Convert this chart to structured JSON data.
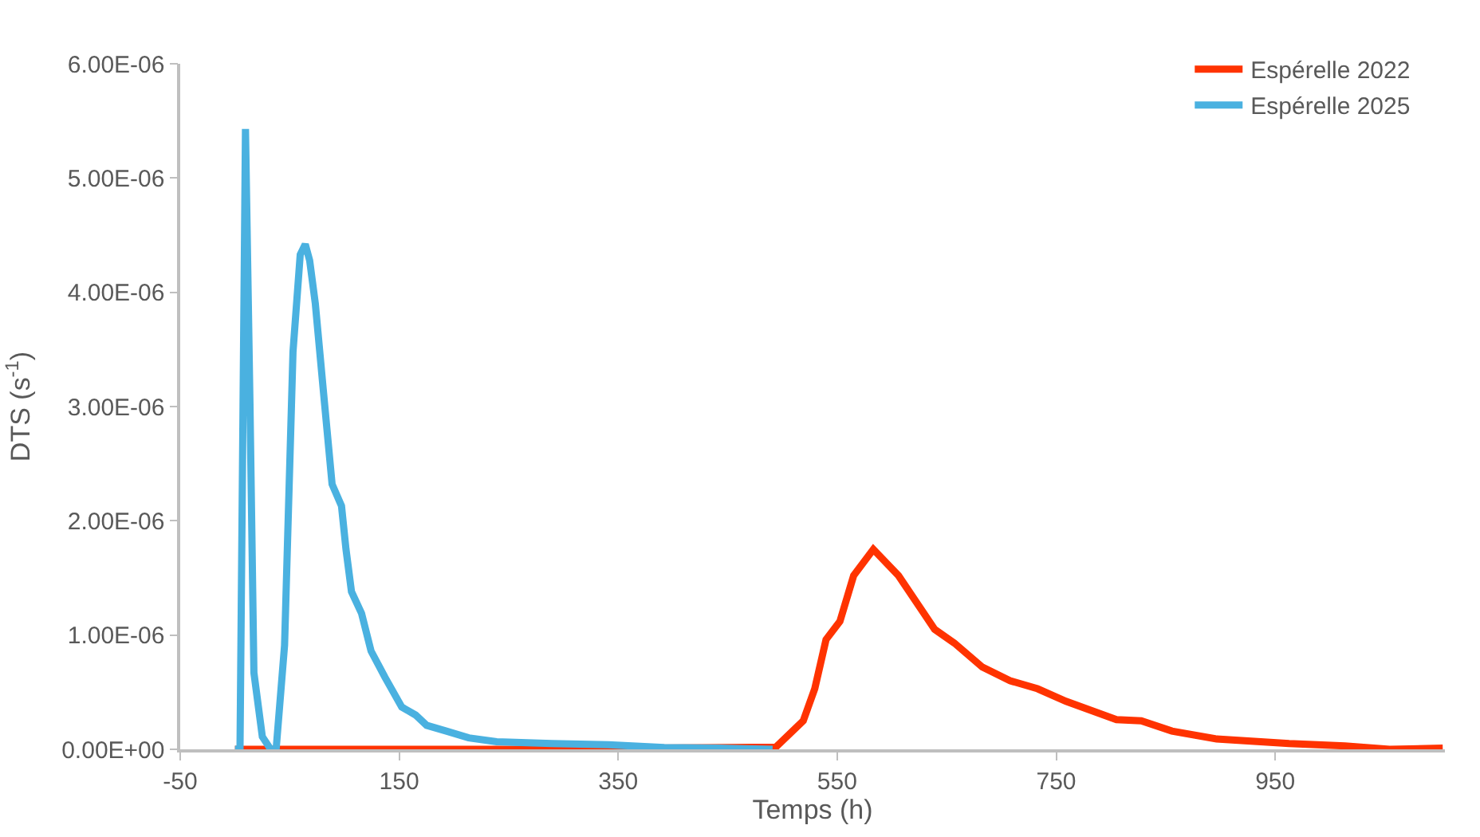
{
  "chart_data": {
    "type": "line",
    "xlabel": "Temps (h)",
    "ylabel": "DTS (s$^{-1}$)",
    "xlim": [
      -50,
      1105
    ],
    "xticks": [
      -50,
      150,
      350,
      550,
      750,
      950
    ],
    "ylim": [
      0,
      6e-06
    ],
    "yticks": [
      {
        "value": 0,
        "label": "0.00E+00"
      },
      {
        "value": 1e-06,
        "label": "1.00E-06"
      },
      {
        "value": 2e-06,
        "label": "2.00E-06"
      },
      {
        "value": 3e-06,
        "label": "3.00E-06"
      },
      {
        "value": 4e-06,
        "label": "4.00E-06"
      },
      {
        "value": 5e-06,
        "label": "5.00E-06"
      },
      {
        "value": 6e-06,
        "label": "6.00E-06"
      }
    ],
    "legend": "top right",
    "marker": "none",
    "line_style": "solid",
    "series": [
      {
        "name": "Espérelle 2022",
        "color": "#ff3300",
        "x": [
          0,
          250,
          494,
          519,
          529.5,
          539.8,
          552.5,
          565,
          583,
          606,
          639,
          657,
          682.5,
          708,
          733,
          759,
          805,
          827.7,
          855.7,
          896.5,
          962.7,
          1013.7,
          1054.5,
          1103
        ],
        "values": [
          0,
          0,
          2e-08,
          2.5e-07,
          5.3e-07,
          9.6e-07,
          1.12e-06,
          1.52e-06,
          1.75e-06,
          1.52e-06,
          1.05e-06,
          9.3e-07,
          7.2e-07,
          6e-07,
          5.3e-07,
          4.2e-07,
          2.6e-07,
          2.5e-07,
          1.6e-07,
          9e-08,
          5e-08,
          3e-08,
          0,
          1e-08
        ]
      },
      {
        "name": "Espérelle 2025",
        "color": "#4ab1e0",
        "x": [
          0,
          4.6,
          9.6,
          13.7,
          17.3,
          25,
          32.6,
          37.6,
          45.3,
          53,
          59.6,
          64.2,
          68.2,
          73.4,
          81,
          88.7,
          97.3,
          101.4,
          106.4,
          115.6,
          124.3,
          137,
          152.3,
          165,
          175,
          193,
          213.5,
          239,
          289.5,
          341,
          392,
          442,
          491
        ],
        "values": [
          0,
          0,
          5.43e-06,
          3.02e-06,
          6.7e-07,
          1.1e-07,
          0,
          0,
          9.1e-07,
          3.48e-06,
          4.33e-06,
          4.42e-06,
          4.28e-06,
          3.9e-06,
          3.11e-06,
          2.32e-06,
          2.13e-06,
          1.75e-06,
          1.38e-06,
          1.19e-06,
          8.6e-07,
          6.3e-07,
          3.7e-07,
          3e-07,
          2.1e-07,
          1.6e-07,
          1e-07,
          6.6e-08,
          5e-08,
          4e-08,
          1.5e-08,
          1e-08,
          0
        ]
      }
    ]
  }
}
